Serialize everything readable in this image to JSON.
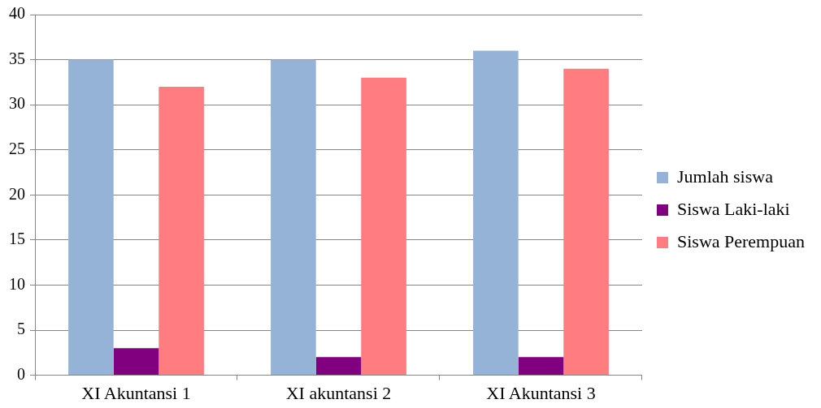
{
  "chart_data": {
    "type": "bar",
    "categories": [
      "XI Akuntansi 1",
      "XI akuntansi 2",
      "XI Akuntansi 3"
    ],
    "series": [
      {
        "name": "Jumlah siswa",
        "color": "#95b3d7",
        "values": [
          35,
          35,
          36
        ]
      },
      {
        "name": "Siswa Laki-laki",
        "color": "#800080",
        "values": [
          3,
          2,
          2
        ]
      },
      {
        "name": "Siswa Perempuan",
        "color": "#ff7c80",
        "values": [
          32,
          33,
          34
        ]
      }
    ],
    "ylim": [
      0,
      40
    ],
    "yticks": [
      0,
      5,
      10,
      15,
      20,
      25,
      30,
      35,
      40
    ],
    "grid": "y",
    "legend": "right"
  }
}
